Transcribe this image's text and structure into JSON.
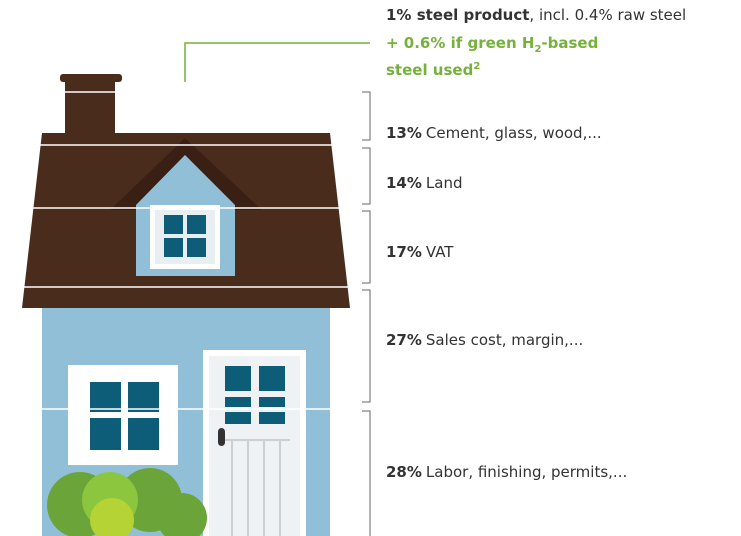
{
  "steel": {
    "share": "1% steel product",
    "note": ", incl. 0.4% raw steel",
    "green_line1": "+ 0.6% if green H",
    "green_sub": "2",
    "green_line1_end": "-based",
    "green_line2": "steel used",
    "green_sup": "2"
  },
  "items": [
    {
      "share": "13%",
      "label": "Cement, glass, wood,..."
    },
    {
      "share": "14%",
      "label": "Land"
    },
    {
      "share": "17%",
      "label": "VAT"
    },
    {
      "share": "27%",
      "label": "Sales cost, margin,..."
    },
    {
      "share": "28%",
      "label": "Labor, finishing, permits,..."
    }
  ]
}
